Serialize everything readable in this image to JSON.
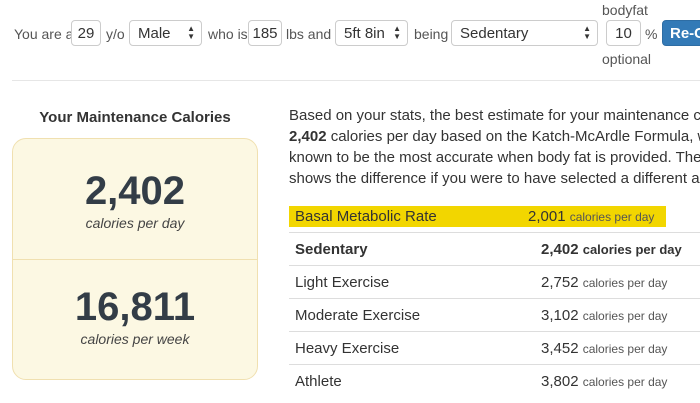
{
  "form": {
    "you_are": "You are a",
    "age": "29",
    "yo": "y/o",
    "gender": "Male",
    "who_is": "who is",
    "weight": "185",
    "lbs_and": "lbs and",
    "height": "5ft 8in",
    "being": "being",
    "activity": "Sedentary",
    "bodyfat_label": "bodyfat",
    "bodyfat": "10",
    "percent": "%",
    "optional": "optional",
    "button": "Re-C"
  },
  "card": {
    "title": "Your Maintenance Calories",
    "daily_value": "2,402",
    "daily_label": "calories per day",
    "weekly_value": "16,811",
    "weekly_label": "calories per week"
  },
  "paragraph": {
    "line1": "Based on your stats, the best estimate for your maintenance ca",
    "line2_bold": "2,402",
    "line2_rest": " calories per day based on the Katch-McArdle Formula, w",
    "line3": "known to be the most accurate when body fat is provided. The",
    "line4": "shows the difference if you were to have selected a different act"
  },
  "table": {
    "unit": "calories per day",
    "rows": [
      {
        "label": "Basal Metabolic Rate",
        "value": "2,001"
      },
      {
        "label": "Sedentary",
        "value": "2,402"
      },
      {
        "label": "Light Exercise",
        "value": "2,752"
      },
      {
        "label": "Moderate Exercise",
        "value": "3,102"
      },
      {
        "label": "Heavy Exercise",
        "value": "3,452"
      },
      {
        "label": "Athlete",
        "value": "3,802"
      }
    ]
  },
  "colors": {
    "accent": "#337ab7",
    "highlight": "#f2d600",
    "card_bg": "#fcf8e3"
  }
}
